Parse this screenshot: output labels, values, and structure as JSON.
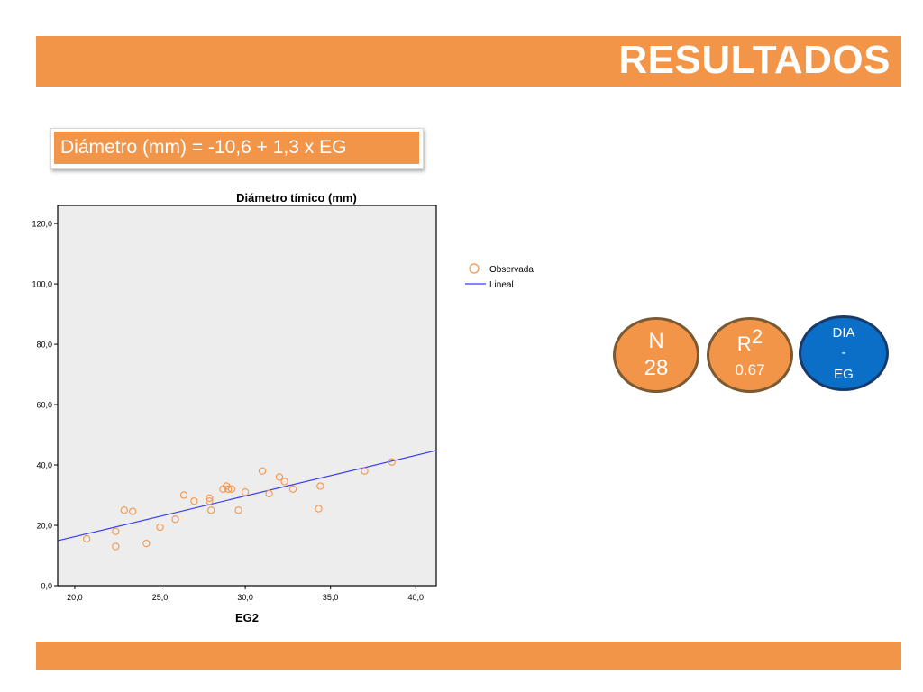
{
  "header": {
    "title": "RESULTADOS"
  },
  "formula": {
    "text": "Diámetro (mm) = -10,6 + 1,3 x EG"
  },
  "stats": {
    "n": {
      "label": "N",
      "value": "28"
    },
    "r2": {
      "label": "R",
      "sup": "2",
      "value": "0.67"
    },
    "model": {
      "line1": "DIA",
      "line2": "-",
      "line3": "EG"
    }
  },
  "colors": {
    "accent": "#f39549",
    "blue": "#0b6fc8",
    "fit_line": "#3b3bf0",
    "plot_bg": "#ededed"
  },
  "chart_data": {
    "type": "scatter",
    "title": "Diámetro tímico (mm)",
    "xlabel": "EG2",
    "ylabel": "",
    "xlim": [
      19.0,
      41.2
    ],
    "ylim": [
      0,
      126
    ],
    "x_ticks": [
      20,
      25,
      30,
      35,
      40
    ],
    "x_tick_labels": [
      "20,0",
      "25,0",
      "30,0",
      "35,0",
      "40,0"
    ],
    "y_ticks": [
      0,
      20,
      40,
      60,
      80,
      100,
      120
    ],
    "y_tick_labels": [
      "0,0",
      "20,0",
      "40,0",
      "60,0",
      "80,0",
      "100,0",
      "120,0"
    ],
    "grid": false,
    "legend_position": "right",
    "series": [
      {
        "name": "Observada",
        "kind": "points",
        "marker": "open-circle",
        "color": "#f39549",
        "points": [
          [
            20.7,
            15.5
          ],
          [
            22.4,
            13.0
          ],
          [
            22.4,
            18.0
          ],
          [
            22.9,
            25.0
          ],
          [
            23.4,
            24.6
          ],
          [
            24.2,
            14.0
          ],
          [
            25.0,
            19.4
          ],
          [
            25.9,
            22.0
          ],
          [
            26.4,
            30.0
          ],
          [
            27.0,
            28.0
          ],
          [
            27.9,
            29.0
          ],
          [
            27.9,
            28.0
          ],
          [
            28.0,
            25.0
          ],
          [
            28.7,
            32.0
          ],
          [
            28.9,
            33.0
          ],
          [
            29.0,
            32.0
          ],
          [
            29.2,
            32.0
          ],
          [
            29.6,
            25.0
          ],
          [
            30.0,
            31.0
          ],
          [
            31.0,
            38.0
          ],
          [
            31.4,
            30.5
          ],
          [
            32.0,
            36.0
          ],
          [
            32.3,
            34.5
          ],
          [
            32.8,
            32.0
          ],
          [
            34.3,
            25.5
          ],
          [
            34.4,
            33.0
          ],
          [
            37.0,
            38.0
          ],
          [
            38.6,
            41.0
          ]
        ]
      },
      {
        "name": "Lineal",
        "kind": "line",
        "color": "#3b3bf0",
        "points": [
          [
            19.0,
            14.9
          ],
          [
            41.2,
            44.8
          ]
        ]
      }
    ]
  }
}
